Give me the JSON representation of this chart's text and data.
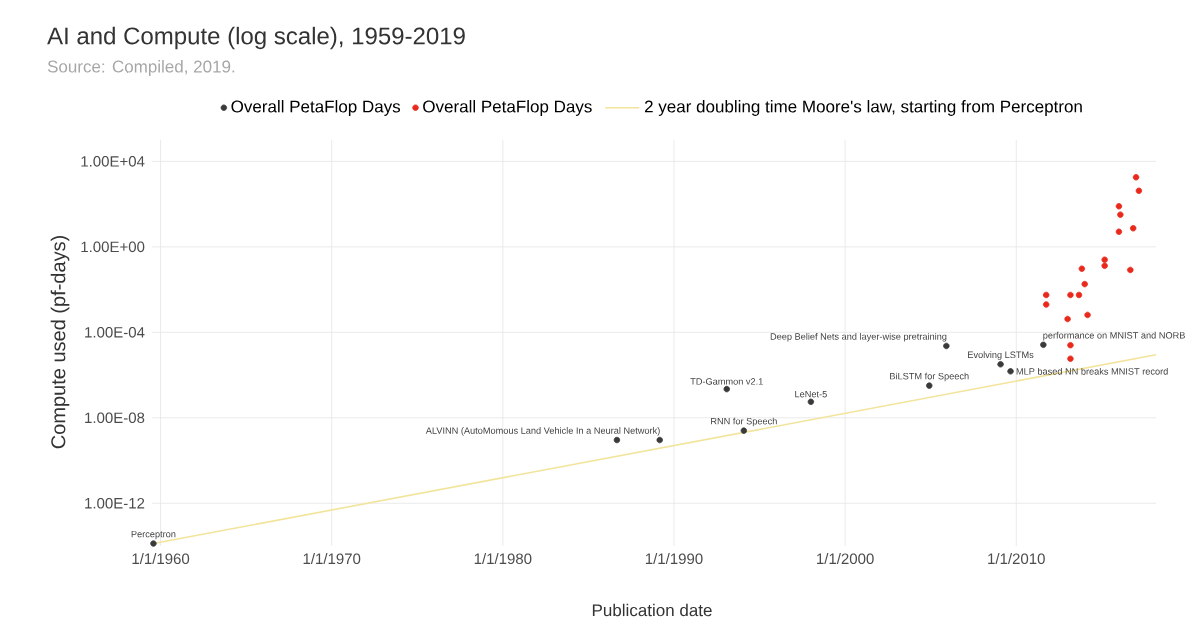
{
  "chart_data": {
    "type": "scatter",
    "title": "AI and Compute (log scale), 1959-2019",
    "xlabel": "Publication date",
    "ylabel": "Compute used (pf-days)",
    "log": "y",
    "grid": true,
    "legend": "top",
    "marker": "circle",
    "xlim": [
      "1959-07",
      "2018-03"
    ],
    "ylim": [
      1e-14,
      100000.0
    ],
    "xticks": [
      {
        "value": "1960-01-01",
        "label": "1/1/1960"
      },
      {
        "value": "1970-01-01",
        "label": "1/1/1970"
      },
      {
        "value": "1980-01-01",
        "label": "1/1/1980"
      },
      {
        "value": "1990-01-01",
        "label": "1/1/1990"
      },
      {
        "value": "2000-01-01",
        "label": "1/1/2000"
      },
      {
        "value": "2010-01-01",
        "label": "1/1/2010"
      }
    ],
    "yticks": [
      {
        "value": 1e-12,
        "label": "1.00E-12"
      },
      {
        "value": 1e-08,
        "label": "1.00E-08"
      },
      {
        "value": 0.0001,
        "label": "1.00E-04"
      },
      {
        "value": 1,
        "label": "1.00E+00"
      },
      {
        "value": 10000,
        "label": "1.00E+04"
      }
    ],
    "series": [
      {
        "name": "Overall PetaFlop Days",
        "color": "#3a3a3a",
        "x": [
          "1959-08",
          "1986-09",
          "1989-03",
          "1993-02",
          "1994-02",
          "1998-01",
          "2004-12",
          "2005-12",
          "2009-02",
          "2009-09",
          "2011-08"
        ],
        "values": [
          1.3e-14,
          9.1e-10,
          9.1e-10,
          2.2e-07,
          2.5e-09,
          5.6e-08,
          3.2e-07,
          2.3e-05,
          3.2e-06,
          1.5e-06,
          2.6e-05
        ]
      },
      {
        "name": "Overall PetaFlop Days",
        "color": "#e8291c",
        "x": [
          "2017-01",
          "2017-03",
          "2016-01",
          "2016-02",
          "2016-01",
          "2016-11",
          "2015-03",
          "2015-03",
          "2016-09",
          "2013-11",
          "2014-01",
          "2013-03",
          "2013-09",
          "2011-10",
          "2011-10",
          "2014-03",
          "2013-01",
          "2013-03",
          "2013-03"
        ],
        "values": [
          1800,
          420,
          79,
          32,
          5.1,
          7.4,
          0.25,
          0.13,
          0.083,
          0.095,
          0.018,
          0.0056,
          0.0056,
          0.0056,
          0.002,
          0.00065,
          0.00042,
          2.5e-05,
          5.8e-06
        ]
      },
      {
        "name": "2 year doubling time Moore's law, starting from Perceptron",
        "type": "line",
        "marker": "none",
        "color": "#f2e49a",
        "x": [
          "1959-08",
          "2018-03"
        ],
        "values": [
          1.3e-14,
          8.9e-06
        ]
      }
    ],
    "annotations": [
      "Source: Compiled, 2019.",
      {
        "text": "Perceptron",
        "x": "1959-08",
        "y": 1.3e-14
      },
      {
        "text": "ALVINN (AutoMomous Land Vehicle In a Neural Network)",
        "x": "1989-03",
        "y": 9.1e-10
      },
      {
        "text": "RNN for Speech",
        "x": "1994-02",
        "y": 2.5e-09
      },
      {
        "text": "TD-Gammon v2.1",
        "x": "1993-02",
        "y": 2.2e-07
      },
      {
        "text": "LeNet-5",
        "x": "1998-01",
        "y": 5.6e-08
      },
      {
        "text": "BiLSTM for Speech",
        "x": "2004-12",
        "y": 3.2e-07
      },
      {
        "text": "Deep Belief Nets and layer-wise pretraining",
        "x": "2005-12",
        "y": 2.3e-05
      },
      {
        "text": "Evolving LSTMs",
        "x": "2009-02",
        "y": 3.2e-06
      },
      {
        "text": "MLP based NN breaks MNIST record",
        "x": "2009-09",
        "y": 1.5e-06
      },
      {
        "text": "performance on MNIST and NORB",
        "x": "2011-08",
        "y": 2.6e-05
      }
    ]
  }
}
